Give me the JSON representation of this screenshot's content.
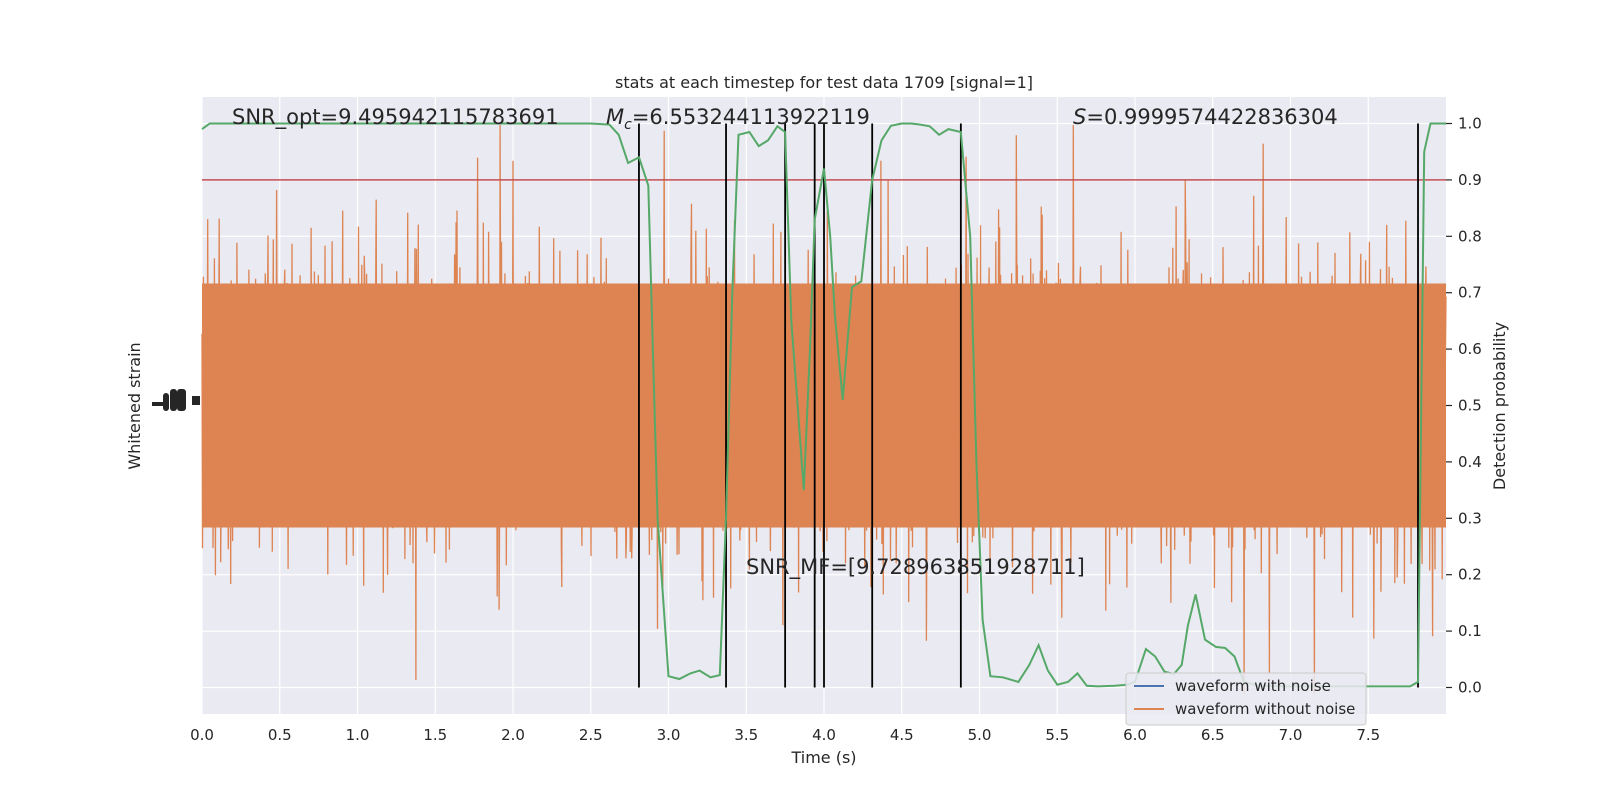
{
  "chart_data": {
    "type": "line",
    "title": "stats at each timestep for test data 1709 [signal=1]",
    "xlabel": "Time (s)",
    "ylabel_left": "Whitened strain",
    "ylabel_right": "Detection probability",
    "xlim": [
      0.0,
      8.0
    ],
    "ylim_right": [
      -0.047,
      1.047
    ],
    "x_ticks": [
      "0.0",
      "0.5",
      "1.0",
      "1.5",
      "2.0",
      "2.5",
      "3.0",
      "3.5",
      "4.0",
      "4.5",
      "5.0",
      "5.5",
      "6.0",
      "6.5",
      "7.0",
      "7.5"
    ],
    "y_ticks_right": [
      "0.0",
      "0.1",
      "0.2",
      "0.3",
      "0.4",
      "0.5",
      "0.6",
      "0.7",
      "0.8",
      "0.9",
      "1.0"
    ],
    "grid": true,
    "legend_position": "lower right",
    "colors": {
      "background": "#eaeaf2",
      "grid": "#ffffff",
      "noise_waveform": "#4c72b0",
      "clean_waveform": "#dd8452",
      "probability": "#55a868",
      "threshold": "#c44e52",
      "events": "#000000"
    },
    "annotations": {
      "snr_opt": "SNR_opt=9.495942115783691",
      "mc_symbol": "M",
      "mc_sub": "c",
      "mc_rest": "=6.553244113922119",
      "s_symbol": "S",
      "s_rest": "=0.9999574422836304",
      "snr_mf": "SNR_MF=[9.728963851928711]"
    },
    "threshold": 0.9,
    "event_times": [
      2.81,
      3.37,
      3.75,
      3.94,
      4.0,
      4.31,
      4.88,
      7.82
    ],
    "series": [
      {
        "name": "waveform with noise",
        "values": []
      },
      {
        "name": "waveform without noise",
        "values": []
      },
      {
        "values": [
          [
            0.0,
            0.99
          ],
          [
            0.05,
            1.0
          ],
          [
            0.5,
            1.0
          ],
          [
            1.0,
            1.0
          ],
          [
            1.5,
            1.0
          ],
          [
            2.0,
            1.0
          ],
          [
            2.5,
            1.0
          ],
          [
            2.62,
            0.998
          ],
          [
            2.68,
            0.98
          ],
          [
            2.74,
            0.93
          ],
          [
            2.81,
            0.94
          ],
          [
            2.87,
            0.89
          ],
          [
            2.93,
            0.3
          ],
          [
            3.0,
            0.02
          ],
          [
            3.07,
            0.015
          ],
          [
            3.14,
            0.025
          ],
          [
            3.2,
            0.03
          ],
          [
            3.27,
            0.018
          ],
          [
            3.33,
            0.022
          ],
          [
            3.37,
            0.3
          ],
          [
            3.41,
            0.7
          ],
          [
            3.45,
            0.98
          ],
          [
            3.52,
            0.985
          ],
          [
            3.58,
            0.96
          ],
          [
            3.64,
            0.97
          ],
          [
            3.7,
            0.995
          ],
          [
            3.75,
            0.985
          ],
          [
            3.79,
            0.65
          ],
          [
            3.83,
            0.5
          ],
          [
            3.87,
            0.35
          ],
          [
            3.91,
            0.6
          ],
          [
            3.94,
            0.83
          ],
          [
            4.0,
            0.92
          ],
          [
            4.04,
            0.8
          ],
          [
            4.07,
            0.66
          ],
          [
            4.12,
            0.51
          ],
          [
            4.18,
            0.71
          ],
          [
            4.24,
            0.72
          ],
          [
            4.31,
            0.9
          ],
          [
            4.37,
            0.97
          ],
          [
            4.43,
            0.996
          ],
          [
            4.5,
            1.0
          ],
          [
            4.56,
            1.0
          ],
          [
            4.62,
            0.998
          ],
          [
            4.68,
            0.995
          ],
          [
            4.74,
            0.98
          ],
          [
            4.8,
            0.99
          ],
          [
            4.88,
            0.985
          ],
          [
            4.94,
            0.8
          ],
          [
            4.98,
            0.4
          ],
          [
            5.02,
            0.12
          ],
          [
            5.07,
            0.02
          ],
          [
            5.15,
            0.018
          ],
          [
            5.25,
            0.01
          ],
          [
            5.32,
            0.04
          ],
          [
            5.38,
            0.075
          ],
          [
            5.44,
            0.03
          ],
          [
            5.5,
            0.005
          ],
          [
            5.57,
            0.01
          ],
          [
            5.63,
            0.025
          ],
          [
            5.69,
            0.003
          ],
          [
            5.76,
            0.002
          ],
          [
            5.87,
            0.003
          ],
          [
            5.95,
            0.005
          ],
          [
            6.0,
            0.01
          ],
          [
            6.07,
            0.068
          ],
          [
            6.13,
            0.055
          ],
          [
            6.19,
            0.028
          ],
          [
            6.25,
            0.024
          ],
          [
            6.3,
            0.04
          ],
          [
            6.34,
            0.11
          ],
          [
            6.39,
            0.165
          ],
          [
            6.45,
            0.085
          ],
          [
            6.52,
            0.072
          ],
          [
            6.58,
            0.07
          ],
          [
            6.64,
            0.055
          ],
          [
            6.7,
            0.01
          ],
          [
            6.8,
            0.003
          ],
          [
            7.0,
            0.002
          ],
          [
            7.5,
            0.002
          ],
          [
            7.77,
            0.002
          ],
          [
            7.82,
            0.01
          ],
          [
            7.86,
            0.95
          ],
          [
            7.9,
            1.0
          ],
          [
            8.0,
            1.0
          ]
        ]
      }
    ]
  }
}
